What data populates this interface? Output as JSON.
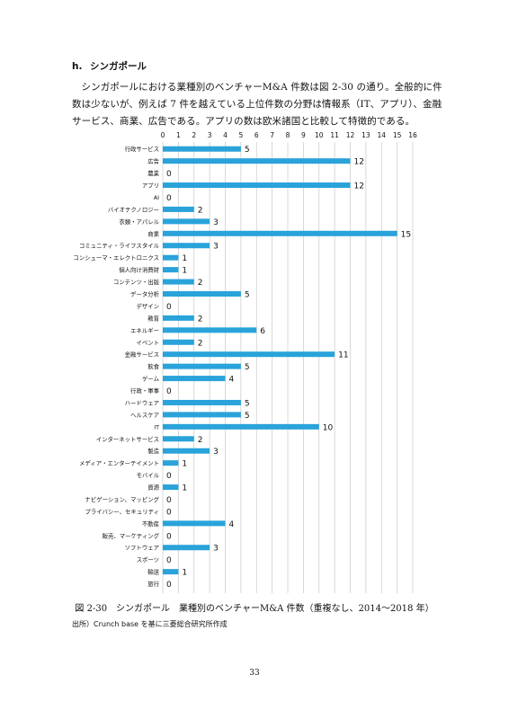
{
  "section": {
    "number": "h.",
    "title": "シンガポール"
  },
  "paragraph": "シンガポールにおける業種別のベンチャーM&A 件数は図 2-30 の通り。全般的に件数は少ないが、例えば 7 件を越えている上位件数の分野は情報系（IT、アプリ）、金融サービス、商業、広告である。アプリの数は欧米諸国と比較して特徴的である。",
  "chart_data": {
    "type": "bar",
    "orientation": "horizontal",
    "categories": [
      "行政サービス",
      "広告",
      "農業",
      "アプリ",
      "AI",
      "バイオテクノロジー",
      "衣類・アパレル",
      "商業",
      "コミュニティ・ライフスタイル",
      "コンシューマ・エレクトロニクス",
      "個人向け消費財",
      "コンテンツ・出版",
      "データ分析",
      "デザイン",
      "教育",
      "エネルギー",
      "イベント",
      "金融サービス",
      "飲食",
      "ゲーム",
      "行政・軍事",
      "ハードウェア",
      "ヘルスケア",
      "IT",
      "インターネットサービス",
      "製造",
      "メディア・エンターテイメント",
      "モバイル",
      "資源",
      "ナビゲーション、マッピング",
      "プライバシー、セキュリティ",
      "不動産",
      "販売、マーケティング",
      "ソフトウェア",
      "スポーツ",
      "輸送",
      "旅行"
    ],
    "values": [
      5,
      12,
      0,
      12,
      0,
      2,
      3,
      15,
      3,
      1,
      1,
      2,
      5,
      0,
      2,
      6,
      2,
      11,
      5,
      4,
      0,
      5,
      5,
      10,
      2,
      3,
      1,
      0,
      1,
      0,
      0,
      4,
      0,
      3,
      0,
      1,
      0
    ],
    "xlim": [
      0,
      16
    ],
    "xticks": [
      "0",
      "1",
      "2",
      "3",
      "4",
      "5",
      "6",
      "7",
      "8",
      "9",
      "10",
      "11",
      "12",
      "13",
      "14",
      "15",
      "16"
    ],
    "axis_position": "top",
    "grid": true,
    "data_labels": true,
    "bar_color": "#29a3da",
    "grid_color": "#c8c8c8"
  },
  "caption": "図 2-30　シンガポール　業種別のベンチャーM&A 件数（重複なし、2014〜2018 年）",
  "source": "出所）Crunch base を基に三菱総合研究所作成",
  "page_number": "33"
}
